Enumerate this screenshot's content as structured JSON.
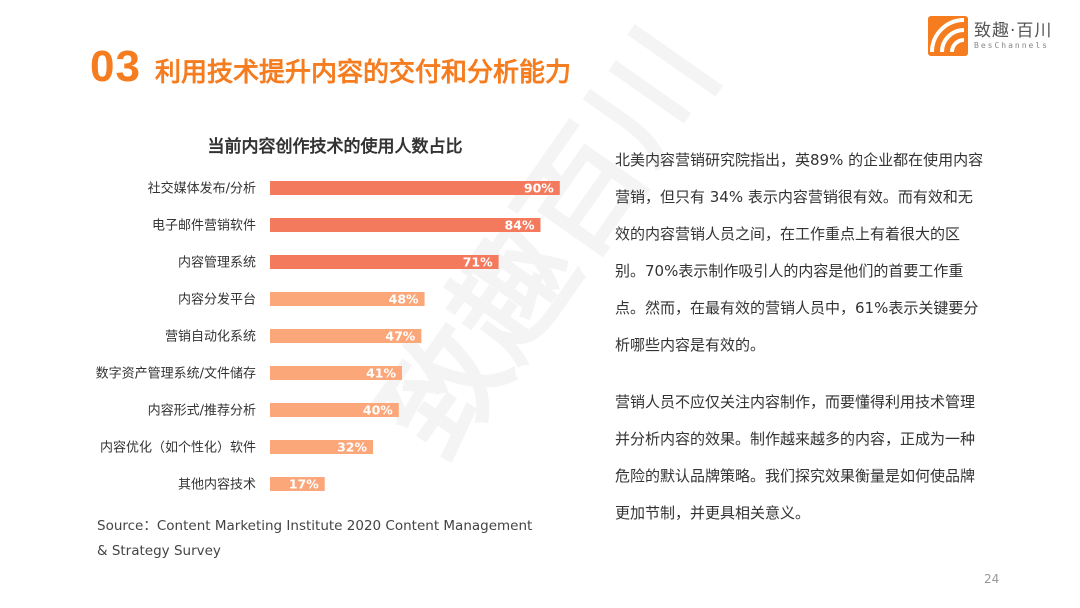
{
  "header": {
    "number": "03",
    "title": "利用技术提升内容的交付和分析能力"
  },
  "logo": {
    "name_cn": "致趣·百川",
    "name_en": "BesChannels",
    "watermark": "致趣百川",
    "colors": [
      "#f57c1f",
      "#e8551f"
    ]
  },
  "chart_data": {
    "type": "bar",
    "orientation": "horizontal",
    "title": "当前内容创作技术的使用人数占比",
    "categories": [
      "社交媒体发布/分析",
      "电子邮件营销软件",
      "内容管理系统",
      "内容分发平台",
      "营销自动化系统",
      "数字资产管理系统/文件储存",
      "内容形式/推荐分析",
      "内容优化（如个性化）软件",
      "其他内容技术"
    ],
    "values": [
      90,
      84,
      71,
      48,
      47,
      41,
      40,
      32,
      17
    ],
    "labels": [
      "90%",
      "84%",
      "71%",
      "48%",
      "47%",
      "41%",
      "40%",
      "32%",
      "17%"
    ],
    "colors": [
      "#f47a5e",
      "#f47a5e",
      "#f47a5e",
      "#fba77a",
      "#fba77a",
      "#fba77a",
      "#fba77a",
      "#fba77a",
      "#fba77a"
    ],
    "xlim": [
      0,
      100
    ],
    "grid": false,
    "xaxis_visible": false,
    "xlabel": "",
    "ylabel": ""
  },
  "source": "Source：Content Marketing Institute 2020 Content Management & Strategy Survey",
  "paragraphs": [
    "北美内容营销研究院指出，英89% 的企业都在使用内容营销，但只有 34% 表示内容营销很有效。而有效和无效的内容营销人员之间，在工作重点上有着很大的区别。70%表示制作吸引人的内容是他们的首要工作重点。然而，在最有效的营销人员中，61%表示关键要分析哪些内容是有效的。",
    "营销人员不应仅关注内容制作，而要懂得利用技术管理并分析内容的效果。制作越来越多的内容，正成为一种危险的默认品牌策略。我们探究效果衡量是如何使品牌更加节制，并更具相关意义。"
  ],
  "page_number": "24"
}
